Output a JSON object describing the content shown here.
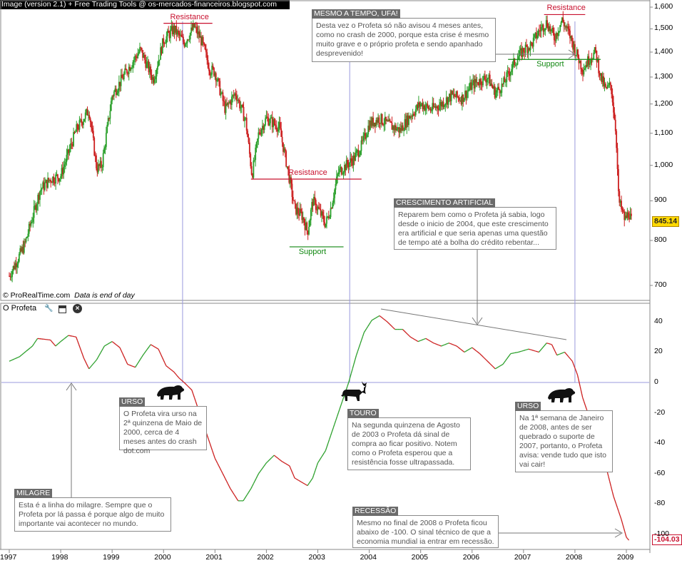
{
  "title_bar": "Image (version 2.1) + Free Trading Tools @ os-mercados-financeiros.blogspot.com",
  "credit": "© ProRealTime.com",
  "credit_note": "Data is end of day",
  "indicator": {
    "name": "O Profeta",
    "icons": [
      "wrench-icon",
      "window-icon",
      "close-icon"
    ]
  },
  "price_badge": "845.14",
  "indicator_badge": "-104.03",
  "colors": {
    "up": "#2ca02c",
    "down": "#cc1f1f",
    "resistance": "#c8102e",
    "support": "#118811",
    "guide": "#9999dd",
    "annotation_line": "#777777"
  },
  "levels": {
    "resistance_label": "Resistance",
    "support_label": "Support"
  },
  "annotations": [
    {
      "id": "mesmo",
      "title": "MESMO A TEMPO, UFA!",
      "text": "Desta vez o Profeta só não avisou 4 meses antes, como no crash de 2000, porque esta crise é mesmo muito grave e o próprio profeta e sendo apanhado desprevenido!"
    },
    {
      "id": "crescimento",
      "title": "CRESCIMENTO ARTIFICIAL",
      "text": "Reparem bem como o Profeta já sabia, logo desde o inicio de 2004, que este crescimento era artificial e que seria apenas uma questão de tempo até a bolha do crédito rebentar..."
    },
    {
      "id": "urso1",
      "title": "URSO",
      "text": "O Profeta vira urso na 2ª quinzena de Maio de 2000, cerca de 4 meses antes do crash dot.com"
    },
    {
      "id": "touro",
      "title": "TOURO",
      "text": "Na segunda quinzena de Agosto de 2003 o Profeta dá sinal de compra ao ficar positivo. Notem como o Profeta esperou que a resistência fosse ultrapassada."
    },
    {
      "id": "urso2",
      "title": "URSO",
      "text": "Na 1ª semana de Janeiro de 2008, antes de ser quebrado o suporte de 2007, portanto, o Profeta avisa: vende tudo que isto vai cair!"
    },
    {
      "id": "milagre",
      "title": "MILAGRE",
      "text": "Esta é a linha do milagre. Sempre que o Profeta por lá passa é porque algo de muito importante vai acontecer no mundo."
    },
    {
      "id": "recessao",
      "title": "RECESSÃO",
      "text": "Mesmo no final de 2008 o Profeta ficou abaixo de -100. O sinal técnico de que a economia mundial ia entrar em recessão."
    }
  ],
  "chart_data": [
    {
      "type": "candlestick",
      "title": "",
      "x_ticks": [
        "1997",
        "1998",
        "1999",
        "2000",
        "2001",
        "2002",
        "2003",
        "2004",
        "2005",
        "2006",
        "2007",
        "2008",
        "2009"
      ],
      "y_ticks": [
        "1,600",
        "1,500",
        "1,400",
        "1,300",
        "1,200",
        "1,100",
        "1,000",
        "900",
        "800",
        "700"
      ],
      "ylim": [
        660,
        1620
      ],
      "xlim": [
        1996.95,
        2009.15
      ],
      "y_scale": "log",
      "close_path": [
        [
          1997.0,
          720
        ],
        [
          1997.3,
          790
        ],
        [
          1997.6,
          930
        ],
        [
          1997.8,
          960
        ],
        [
          1998.0,
          970
        ],
        [
          1998.3,
          1110
        ],
        [
          1998.55,
          1180
        ],
        [
          1998.7,
          990
        ],
        [
          1998.8,
          1000
        ],
        [
          1999.0,
          1230
        ],
        [
          1999.3,
          1330
        ],
        [
          1999.55,
          1410
        ],
        [
          1999.8,
          1290
        ],
        [
          2000.0,
          1450
        ],
        [
          2000.2,
          1500
        ],
        [
          2000.4,
          1440
        ],
        [
          2000.6,
          1510
        ],
        [
          2000.75,
          1440
        ],
        [
          2000.9,
          1330
        ],
        [
          2001.0,
          1320
        ],
        [
          2001.2,
          1180
        ],
        [
          2001.4,
          1240
        ],
        [
          2001.6,
          1140
        ],
        [
          2001.72,
          970
        ],
        [
          2001.85,
          1100
        ],
        [
          2002.0,
          1150
        ],
        [
          2002.25,
          1120
        ],
        [
          2002.4,
          1000
        ],
        [
          2002.55,
          880
        ],
        [
          2002.7,
          860
        ],
        [
          2002.8,
          820
        ],
        [
          2002.9,
          900
        ],
        [
          2003.0,
          880
        ],
        [
          2003.15,
          840
        ],
        [
          2003.25,
          880
        ],
        [
          2003.4,
          980
        ],
        [
          2003.55,
          1000
        ],
        [
          2003.7,
          1020
        ],
        [
          2003.85,
          1060
        ],
        [
          2004.0,
          1130
        ],
        [
          2004.2,
          1150
        ],
        [
          2004.35,
          1130
        ],
        [
          2004.6,
          1110
        ],
        [
          2004.8,
          1160
        ],
        [
          2005.0,
          1200
        ],
        [
          2005.2,
          1180
        ],
        [
          2005.4,
          1200
        ],
        [
          2005.6,
          1230
        ],
        [
          2005.8,
          1220
        ],
        [
          2006.0,
          1270
        ],
        [
          2006.3,
          1300
        ],
        [
          2006.45,
          1240
        ],
        [
          2006.6,
          1270
        ],
        [
          2006.8,
          1350
        ],
        [
          2007.0,
          1410
        ],
        [
          2007.15,
          1430
        ],
        [
          2007.3,
          1490
        ],
        [
          2007.45,
          1530
        ],
        [
          2007.6,
          1460
        ],
        [
          2007.75,
          1540
        ],
        [
          2007.9,
          1470
        ],
        [
          2008.0,
          1410
        ],
        [
          2008.15,
          1330
        ],
        [
          2008.3,
          1380
        ],
        [
          2008.4,
          1400
        ],
        [
          2008.5,
          1300
        ],
        [
          2008.6,
          1250
        ],
        [
          2008.7,
          1270
        ],
        [
          2008.8,
          1100
        ],
        [
          2008.85,
          900
        ],
        [
          2008.9,
          880
        ],
        [
          2008.97,
          850
        ],
        [
          2009.05,
          870
        ],
        [
          2009.1,
          845
        ]
      ],
      "last_close": 845.14,
      "levels": [
        {
          "label": "Resistance",
          "value": 1525,
          "x": [
            2000.0,
            2000.95
          ]
        },
        {
          "label": "Resistance",
          "value": 960,
          "x": [
            2001.7,
            2003.85
          ]
        },
        {
          "label": "Support",
          "value": 785,
          "x": [
            2002.45,
            2003.5
          ]
        },
        {
          "label": "Resistance",
          "value": 1565,
          "x": [
            2007.4,
            2008.2
          ]
        },
        {
          "label": "Support",
          "value": 1370,
          "x": [
            2006.7,
            2008.5
          ]
        }
      ]
    },
    {
      "type": "line",
      "title": "O Profeta",
      "ylim": [
        -108,
        48
      ],
      "y_ticks": [
        "40",
        "20",
        "0",
        "-20",
        "-40",
        "-60",
        "-80",
        "-100"
      ],
      "points": [
        [
          1997.0,
          14
        ],
        [
          1997.2,
          17
        ],
        [
          1997.45,
          24
        ],
        [
          1997.55,
          29
        ],
        [
          1997.8,
          28
        ],
        [
          1997.9,
          24
        ],
        [
          1998.0,
          27
        ],
        [
          1998.15,
          31
        ],
        [
          1998.3,
          30
        ],
        [
          1998.45,
          16
        ],
        [
          1998.55,
          9
        ],
        [
          1998.7,
          15
        ],
        [
          1998.85,
          24
        ],
        [
          1999.0,
          27
        ],
        [
          1999.15,
          23
        ],
        [
          1999.3,
          12
        ],
        [
          1999.45,
          10
        ],
        [
          1999.6,
          18
        ],
        [
          1999.75,
          25
        ],
        [
          1999.9,
          22
        ],
        [
          2000.05,
          11
        ],
        [
          2000.2,
          7
        ],
        [
          2000.3,
          3
        ],
        [
          2000.4,
          0
        ],
        [
          2000.55,
          -5
        ],
        [
          2000.7,
          -20
        ],
        [
          2000.85,
          -35
        ],
        [
          2001.0,
          -50
        ],
        [
          2001.15,
          -60
        ],
        [
          2001.3,
          -70
        ],
        [
          2001.45,
          -78
        ],
        [
          2001.55,
          -78
        ],
        [
          2001.7,
          -70
        ],
        [
          2001.85,
          -60
        ],
        [
          2002.0,
          -53
        ],
        [
          2002.15,
          -48
        ],
        [
          2002.3,
          -52
        ],
        [
          2002.45,
          -55
        ],
        [
          2002.55,
          -63
        ],
        [
          2002.7,
          -66
        ],
        [
          2002.8,
          -68
        ],
        [
          2002.9,
          -63
        ],
        [
          2003.0,
          -53
        ],
        [
          2003.15,
          -45
        ],
        [
          2003.3,
          -30
        ],
        [
          2003.45,
          -15
        ],
        [
          2003.6,
          0
        ],
        [
          2003.75,
          18
        ],
        [
          2003.9,
          33
        ],
        [
          2004.05,
          41
        ],
        [
          2004.2,
          44
        ],
        [
          2004.35,
          40
        ],
        [
          2004.5,
          35
        ],
        [
          2004.65,
          35
        ],
        [
          2004.8,
          30
        ],
        [
          2004.95,
          27
        ],
        [
          2005.1,
          29
        ],
        [
          2005.25,
          26
        ],
        [
          2005.4,
          24
        ],
        [
          2005.55,
          26
        ],
        [
          2005.7,
          24
        ],
        [
          2005.85,
          20
        ],
        [
          2006.0,
          23
        ],
        [
          2006.15,
          19
        ],
        [
          2006.3,
          14
        ],
        [
          2006.45,
          9
        ],
        [
          2006.6,
          12
        ],
        [
          2006.75,
          19
        ],
        [
          2006.9,
          20
        ],
        [
          2007.1,
          22
        ],
        [
          2007.3,
          20
        ],
        [
          2007.45,
          26
        ],
        [
          2007.55,
          25
        ],
        [
          2007.65,
          18
        ],
        [
          2007.8,
          20
        ],
        [
          2007.95,
          14
        ],
        [
          2008.05,
          5
        ],
        [
          2008.15,
          -10
        ],
        [
          2008.3,
          -25
        ],
        [
          2008.45,
          -40
        ],
        [
          2008.6,
          -55
        ],
        [
          2008.75,
          -75
        ],
        [
          2008.9,
          -90
        ],
        [
          2009.0,
          -102
        ],
        [
          2009.05,
          -104
        ]
      ],
      "last_value": -104.03
    }
  ]
}
